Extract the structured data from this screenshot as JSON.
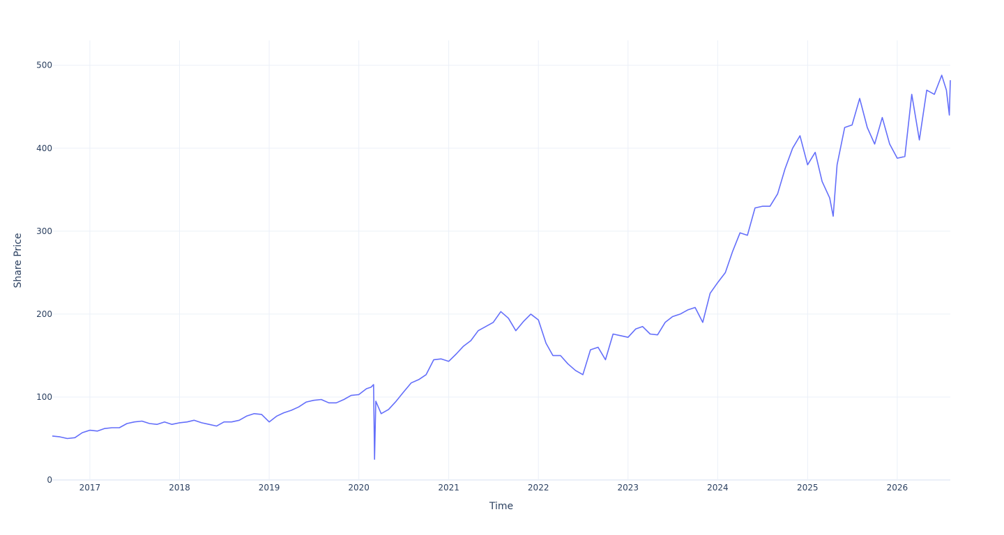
{
  "chart_data": {
    "type": "line",
    "title": "",
    "xlabel": "Time",
    "ylabel": "Share Price",
    "x_range": [
      "2016-08-01",
      "2026-08-05"
    ],
    "ylim": [
      0,
      530
    ],
    "grid": true,
    "legend": "none",
    "x_ticks": [
      {
        "date": "2017-01-01",
        "label": "2017"
      },
      {
        "date": "2018-01-01",
        "label": "2018"
      },
      {
        "date": "2019-01-01",
        "label": "2019"
      },
      {
        "date": "2020-01-01",
        "label": "2020"
      },
      {
        "date": "2021-01-01",
        "label": "2021"
      },
      {
        "date": "2022-01-01",
        "label": "2022"
      },
      {
        "date": "2023-01-01",
        "label": "2023"
      },
      {
        "date": "2024-01-01",
        "label": "2024"
      },
      {
        "date": "2025-01-01",
        "label": "2025"
      },
      {
        "date": "2026-01-01",
        "label": "2026"
      }
    ],
    "y_ticks": [
      {
        "value": 0,
        "label": "0"
      },
      {
        "value": 100,
        "label": "100"
      },
      {
        "value": 200,
        "label": "200"
      },
      {
        "value": 300,
        "label": "300"
      },
      {
        "value": 400,
        "label": "400"
      },
      {
        "value": 500,
        "label": "500"
      }
    ],
    "series": [
      {
        "color": "#636efa",
        "points": [
          [
            "2016-08-01",
            53
          ],
          [
            "2016-09-01",
            52
          ],
          [
            "2016-10-01",
            50
          ],
          [
            "2016-11-01",
            51
          ],
          [
            "2016-12-01",
            57
          ],
          [
            "2017-01-01",
            60
          ],
          [
            "2017-02-01",
            59
          ],
          [
            "2017-03-01",
            62
          ],
          [
            "2017-04-01",
            63
          ],
          [
            "2017-05-01",
            63
          ],
          [
            "2017-06-01",
            68
          ],
          [
            "2017-07-01",
            70
          ],
          [
            "2017-08-01",
            71
          ],
          [
            "2017-09-01",
            68
          ],
          [
            "2017-10-01",
            67
          ],
          [
            "2017-11-01",
            70
          ],
          [
            "2017-12-01",
            67
          ],
          [
            "2018-01-01",
            69
          ],
          [
            "2018-02-01",
            70
          ],
          [
            "2018-03-01",
            72
          ],
          [
            "2018-04-01",
            69
          ],
          [
            "2018-05-01",
            67
          ],
          [
            "2018-06-01",
            65
          ],
          [
            "2018-07-01",
            70
          ],
          [
            "2018-08-01",
            70
          ],
          [
            "2018-09-01",
            72
          ],
          [
            "2018-10-01",
            77
          ],
          [
            "2018-11-01",
            80
          ],
          [
            "2018-12-01",
            79
          ],
          [
            "2019-01-01",
            70
          ],
          [
            "2019-02-01",
            77
          ],
          [
            "2019-03-01",
            81
          ],
          [
            "2019-04-01",
            84
          ],
          [
            "2019-05-01",
            88
          ],
          [
            "2019-06-01",
            94
          ],
          [
            "2019-07-01",
            96
          ],
          [
            "2019-08-01",
            97
          ],
          [
            "2019-09-01",
            93
          ],
          [
            "2019-10-01",
            93
          ],
          [
            "2019-11-01",
            97
          ],
          [
            "2019-12-01",
            102
          ],
          [
            "2020-01-01",
            103
          ],
          [
            "2020-02-01",
            110
          ],
          [
            "2020-02-20",
            112
          ],
          [
            "2020-03-01",
            115
          ],
          [
            "2020-03-05",
            25
          ],
          [
            "2020-03-10",
            95
          ],
          [
            "2020-04-01",
            80
          ],
          [
            "2020-05-01",
            85
          ],
          [
            "2020-06-01",
            95
          ],
          [
            "2020-07-01",
            106
          ],
          [
            "2020-08-01",
            117
          ],
          [
            "2020-09-01",
            121
          ],
          [
            "2020-10-01",
            127
          ],
          [
            "2020-11-01",
            145
          ],
          [
            "2020-12-01",
            146
          ],
          [
            "2021-01-01",
            143
          ],
          [
            "2021-02-01",
            152
          ],
          [
            "2021-03-01",
            161
          ],
          [
            "2021-04-01",
            168
          ],
          [
            "2021-05-01",
            180
          ],
          [
            "2021-06-01",
            185
          ],
          [
            "2021-07-01",
            190
          ],
          [
            "2021-08-01",
            203
          ],
          [
            "2021-09-01",
            195
          ],
          [
            "2021-10-01",
            180
          ],
          [
            "2021-11-01",
            191
          ],
          [
            "2021-12-01",
            200
          ],
          [
            "2022-01-01",
            193
          ],
          [
            "2022-02-01",
            165
          ],
          [
            "2022-03-01",
            150
          ],
          [
            "2022-04-01",
            150
          ],
          [
            "2022-05-01",
            140
          ],
          [
            "2022-06-01",
            132
          ],
          [
            "2022-07-01",
            127
          ],
          [
            "2022-08-01",
            157
          ],
          [
            "2022-09-01",
            160
          ],
          [
            "2022-10-01",
            145
          ],
          [
            "2022-11-01",
            176
          ],
          [
            "2022-12-01",
            174
          ],
          [
            "2023-01-01",
            172
          ],
          [
            "2023-02-01",
            182
          ],
          [
            "2023-03-01",
            185
          ],
          [
            "2023-04-01",
            176
          ],
          [
            "2023-05-01",
            175
          ],
          [
            "2023-06-01",
            190
          ],
          [
            "2023-07-01",
            197
          ],
          [
            "2023-08-01",
            200
          ],
          [
            "2023-09-01",
            205
          ],
          [
            "2023-10-01",
            208
          ],
          [
            "2023-11-01",
            190
          ],
          [
            "2023-12-01",
            225
          ],
          [
            "2024-01-01",
            238
          ],
          [
            "2024-02-01",
            250
          ],
          [
            "2024-03-01",
            275
          ],
          [
            "2024-04-01",
            298
          ],
          [
            "2024-05-01",
            295
          ],
          [
            "2024-06-01",
            328
          ],
          [
            "2024-07-01",
            330
          ],
          [
            "2024-08-01",
            330
          ],
          [
            "2024-09-01",
            345
          ],
          [
            "2024-10-01",
            375
          ],
          [
            "2024-11-01",
            400
          ],
          [
            "2024-12-01",
            415
          ],
          [
            "2025-01-01",
            380
          ],
          [
            "2025-02-01",
            395
          ],
          [
            "2025-03-01",
            360
          ],
          [
            "2025-04-01",
            340
          ],
          [
            "2025-04-15",
            318
          ],
          [
            "2025-05-01",
            380
          ],
          [
            "2025-06-01",
            425
          ],
          [
            "2025-07-01",
            428
          ],
          [
            "2025-08-01",
            460
          ],
          [
            "2025-09-01",
            425
          ],
          [
            "2025-10-01",
            405
          ],
          [
            "2025-11-01",
            437
          ],
          [
            "2025-12-01",
            405
          ],
          [
            "2026-01-01",
            388
          ],
          [
            "2026-02-01",
            390
          ],
          [
            "2026-03-01",
            465
          ],
          [
            "2026-04-01",
            410
          ],
          [
            "2026-05-01",
            470
          ],
          [
            "2026-06-01",
            465
          ],
          [
            "2026-07-01",
            488
          ],
          [
            "2026-07-20",
            470
          ],
          [
            "2026-08-01",
            440
          ],
          [
            "2026-08-05",
            482
          ]
        ]
      }
    ]
  }
}
